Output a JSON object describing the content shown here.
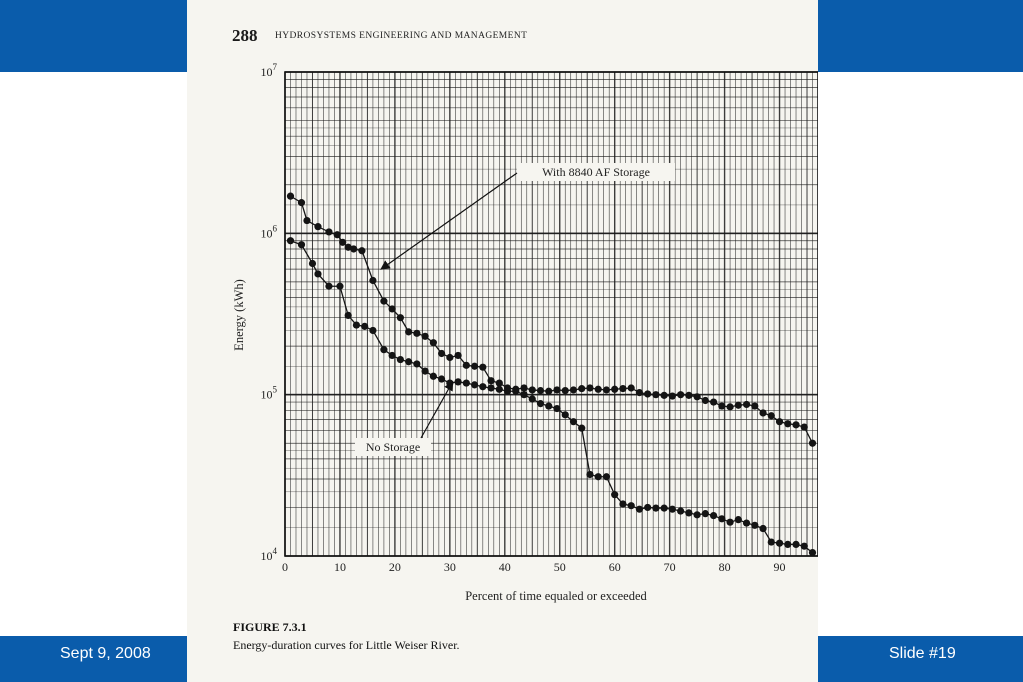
{
  "slide": {
    "date": "Sept 9, 2008",
    "slide_number": "Slide #19",
    "band_color": "#0a5cab"
  },
  "book": {
    "page_number": "288",
    "running_head": "HYDROSYSTEMS ENGINEERING AND MANAGEMENT"
  },
  "figure": {
    "label": "FIGURE 7.3.1",
    "caption": "Energy-duration curves for Little Weiser River."
  },
  "chart_data": {
    "type": "line",
    "title": "",
    "xlabel": "Percent of time equaled or exceeded",
    "ylabel": "Energy (kWh)",
    "x_scale": "linear",
    "y_scale": "log",
    "xlim": [
      0,
      97
    ],
    "ylim": [
      10000,
      10000000
    ],
    "x_ticks": [
      0,
      10,
      20,
      30,
      40,
      50,
      60,
      70,
      80,
      90
    ],
    "y_ticks": [
      {
        "value": 10000,
        "base": "10",
        "exp": "4"
      },
      {
        "value": 100000,
        "base": "10",
        "exp": "5"
      },
      {
        "value": 1000000,
        "base": "10",
        "exp": "6"
      },
      {
        "value": 10000000,
        "base": "10",
        "exp": "7"
      }
    ],
    "grid": true,
    "legend": "none",
    "annotations": [
      {
        "text": "With 8840 AF Storage",
        "series": "With 8840 AF Storage"
      },
      {
        "text": "No Storage",
        "series": "No Storage"
      }
    ],
    "series": [
      {
        "name": "With 8840 AF Storage",
        "x": [
          1,
          3,
          4,
          6,
          8,
          9.5,
          10.5,
          11.5,
          12.5,
          14,
          16,
          18,
          19.5,
          21,
          22.5,
          24,
          25.5,
          27,
          28.5,
          30,
          31.5,
          33,
          34.5,
          36,
          37.5,
          39,
          40.5,
          42,
          43.5,
          45,
          46.5,
          48,
          49.5,
          51,
          52.5,
          54,
          55.5,
          57,
          58.5,
          60,
          61.5,
          63,
          64.5,
          66,
          67.5,
          69,
          70.5,
          72,
          73.5,
          75,
          76.5,
          78,
          79.5,
          81,
          82.5,
          84,
          85.5,
          87,
          88.5,
          90,
          91.5,
          93,
          94.5,
          96
        ],
        "y": [
          1700000,
          1550000,
          1200000,
          1100000,
          1020000,
          980000,
          880000,
          820000,
          800000,
          780000,
          510000,
          380000,
          340000,
          300000,
          245000,
          240000,
          230000,
          210000,
          180000,
          170000,
          175000,
          152000,
          150000,
          148000,
          122000,
          118000,
          110000,
          108000,
          110000,
          107000,
          106000,
          105000,
          107000,
          106000,
          107000,
          109000,
          110000,
          108000,
          107000,
          108000,
          109000,
          110000,
          103000,
          101000,
          100000,
          99000,
          98000,
          100000,
          99000,
          97000,
          92000,
          90000,
          85000,
          84000,
          86000,
          87000,
          85000,
          77000,
          74000,
          68000,
          66000,
          65000,
          63000,
          50000
        ]
      },
      {
        "name": "No Storage",
        "x": [
          1,
          3,
          5,
          6,
          8,
          10,
          11.5,
          13,
          14.5,
          16,
          18,
          19.5,
          21,
          22.5,
          24,
          25.5,
          27,
          28.5,
          30,
          31.5,
          33,
          34.5,
          36,
          37.5,
          39,
          40.5,
          42,
          43.5,
          45,
          46.5,
          48,
          49.5,
          51,
          52.5,
          54,
          55.5,
          57,
          58.5,
          60,
          61.5,
          63,
          64.5,
          66,
          67.5,
          69,
          70.5,
          72,
          73.5,
          75,
          76.5,
          78,
          79.5,
          81,
          82.5,
          84,
          85.5,
          87,
          88.5,
          90,
          91.5,
          93,
          94.5,
          96
        ],
        "y": [
          900000,
          850000,
          650000,
          560000,
          470000,
          470000,
          310000,
          270000,
          265000,
          250000,
          190000,
          175000,
          165000,
          160000,
          155000,
          140000,
          130000,
          125000,
          118000,
          120000,
          118000,
          115000,
          112000,
          110000,
          108000,
          105000,
          105000,
          100000,
          94000,
          88000,
          85000,
          82000,
          75000,
          68000,
          62000,
          32000,
          31000,
          31000,
          24000,
          21000,
          20500,
          19500,
          20000,
          19800,
          19800,
          19500,
          19000,
          18500,
          18000,
          18300,
          17800,
          17000,
          16200,
          16800,
          16000,
          15500,
          14800,
          12200,
          12000,
          11800,
          11800,
          11500,
          10500
        ]
      }
    ]
  }
}
